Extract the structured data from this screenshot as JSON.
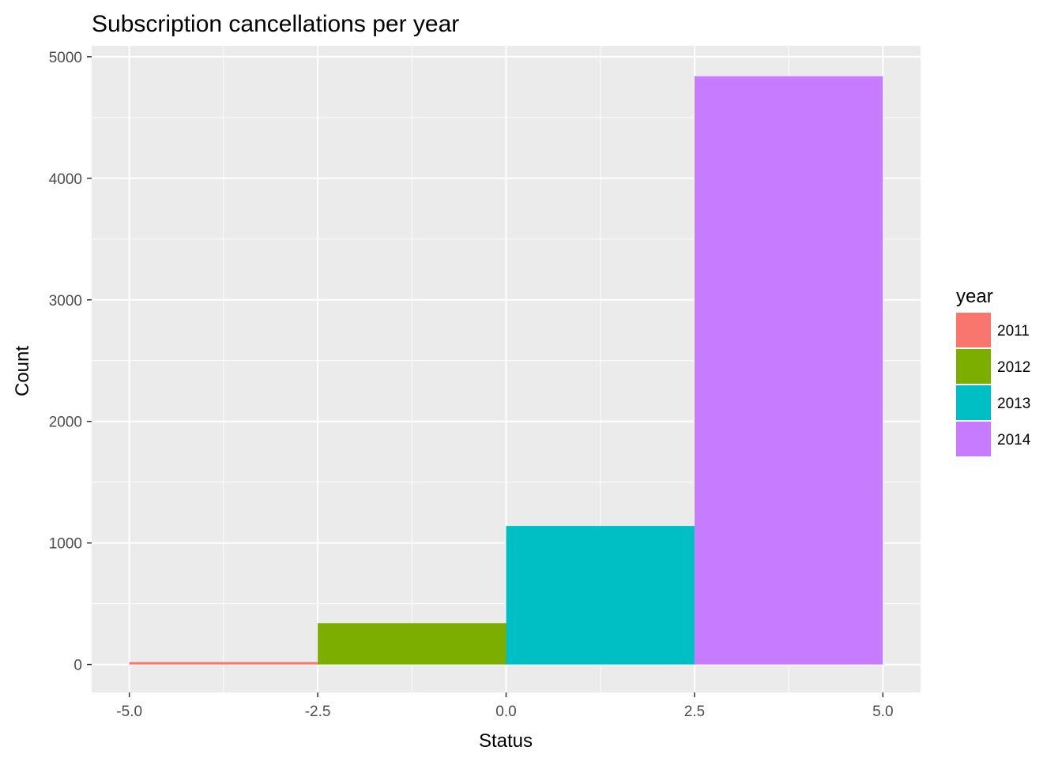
{
  "chart_data": {
    "type": "bar",
    "title": "Subscription cancellations per year",
    "xlabel": "Status",
    "ylabel": "Count",
    "xlim": [
      -5.5,
      5.5
    ],
    "ylim": [
      -230,
      5090
    ],
    "x_ticks": [
      -5.0,
      -2.5,
      0.0,
      2.5,
      5.0
    ],
    "x_tick_labels": [
      "-5.0",
      "-2.5",
      "0.0",
      "2.5",
      "5.0"
    ],
    "y_ticks": [
      0,
      1000,
      2000,
      3000,
      4000,
      5000
    ],
    "y_tick_labels": [
      "0",
      "1000",
      "2000",
      "3000",
      "4000",
      "5000"
    ],
    "grid": true,
    "legend": {
      "title": "year",
      "placement": "right"
    },
    "series": [
      {
        "name": "2011",
        "x_start": -5.0,
        "x_end": -2.5,
        "value": 20,
        "color": "#F8766D"
      },
      {
        "name": "2012",
        "x_start": -2.5,
        "x_end": 0.0,
        "value": 340,
        "color": "#7CAE00"
      },
      {
        "name": "2013",
        "x_start": 0.0,
        "x_end": 2.5,
        "value": 1140,
        "color": "#00BFC4"
      },
      {
        "name": "2014",
        "x_start": 2.5,
        "x_end": 5.0,
        "value": 4840,
        "color": "#C77CFF"
      }
    ],
    "panel_background": "#EBEBEB",
    "grid_color": "#FFFFFF"
  }
}
